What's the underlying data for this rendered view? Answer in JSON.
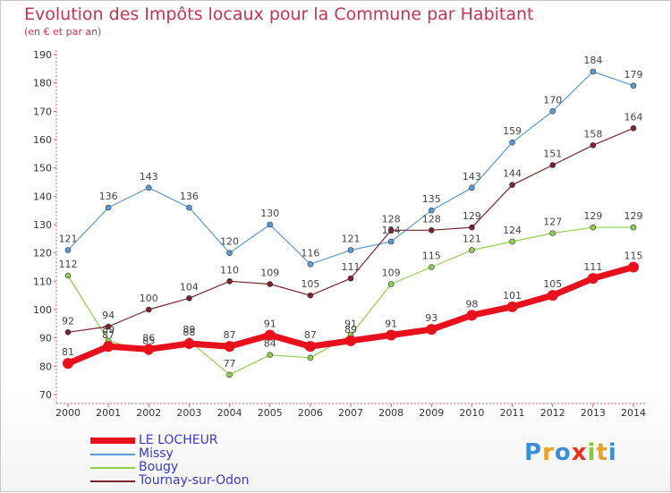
{
  "title": "Evolution des Impôts locaux pour la Commune par Habitant",
  "subtitle": "(en € et par an)",
  "chart_data": {
    "type": "line",
    "x": [
      "2000",
      "2001",
      "2002",
      "2003",
      "2004",
      "2005",
      "2006",
      "2007",
      "2008",
      "2009",
      "2010",
      "2011",
      "2012",
      "2013",
      "2014"
    ],
    "ylim": [
      70,
      190
    ],
    "yticks": [
      70,
      80,
      90,
      100,
      110,
      120,
      130,
      140,
      150,
      160,
      170,
      180,
      190
    ],
    "grid": false,
    "series": [
      {
        "name": "Missy",
        "color": "#5b9bd5",
        "width": 1.2,
        "values": [
          121,
          136,
          143,
          136,
          120,
          130,
          116,
          121,
          124,
          135,
          143,
          159,
          170,
          184,
          179
        ],
        "labels": [
          "121",
          "136",
          "143",
          "136",
          "120",
          "130",
          "116",
          "121",
          "124",
          "135",
          "143",
          "159",
          "170",
          "184",
          "179"
        ]
      },
      {
        "name": "Bougy",
        "color": "#8fd14f",
        "width": 1.2,
        "values": [
          112,
          89,
          85,
          89,
          77,
          84,
          83,
          91,
          109,
          115,
          121,
          124,
          127,
          129,
          129
        ],
        "labels": [
          "112",
          "89",
          "85",
          "89",
          "77",
          "84",
          "83",
          "91",
          "109",
          "115",
          "121",
          "124",
          "127",
          "129",
          "129"
        ]
      },
      {
        "name": "Tournay-sur-Odon",
        "color": "#7a2430",
        "width": 1.2,
        "values": [
          92,
          94,
          100,
          104,
          110,
          109,
          105,
          111,
          128,
          128,
          129,
          144,
          151,
          158,
          164
        ],
        "labels": [
          "92",
          "94",
          "100",
          "104",
          "110",
          "109",
          "105",
          "111",
          "128",
          "128",
          "129",
          "144",
          "151",
          "158",
          "164"
        ]
      },
      {
        "name": "LE LOCHEUR",
        "color": "#e8101c",
        "width": 7,
        "values": [
          81,
          87,
          86,
          88,
          87,
          91,
          87,
          89,
          91,
          93,
          98,
          101,
          105,
          111,
          115
        ],
        "labels": [
          "81",
          "87",
          "86",
          "88",
          "87",
          "91",
          "87",
          "89",
          "91",
          "93",
          "98",
          "101",
          "105",
          "111",
          "115"
        ]
      }
    ]
  },
  "legend": [
    {
      "label": "LE LOCHEUR",
      "color": "#e8101c",
      "thickness": 7
    },
    {
      "label": "Missy",
      "color": "#5b9bd5",
      "thickness": 2
    },
    {
      "label": "Bougy",
      "color": "#8fd14f",
      "thickness": 2
    },
    {
      "label": "Tournay-sur-Odon",
      "color": "#7a2430",
      "thickness": 2
    }
  ],
  "logo": {
    "letters": [
      {
        "ch": "P",
        "color": "#3b8fd6"
      },
      {
        "ch": "r",
        "color": "#f0a020"
      },
      {
        "ch": "o",
        "color": "#3b8fd6"
      },
      {
        "ch": "x",
        "color": "#e83020"
      },
      {
        "ch": "i",
        "color": "#8cc63f"
      },
      {
        "ch": "t",
        "color": "#f0a020"
      },
      {
        "ch": "i",
        "color": "#3b8fd6"
      }
    ]
  }
}
